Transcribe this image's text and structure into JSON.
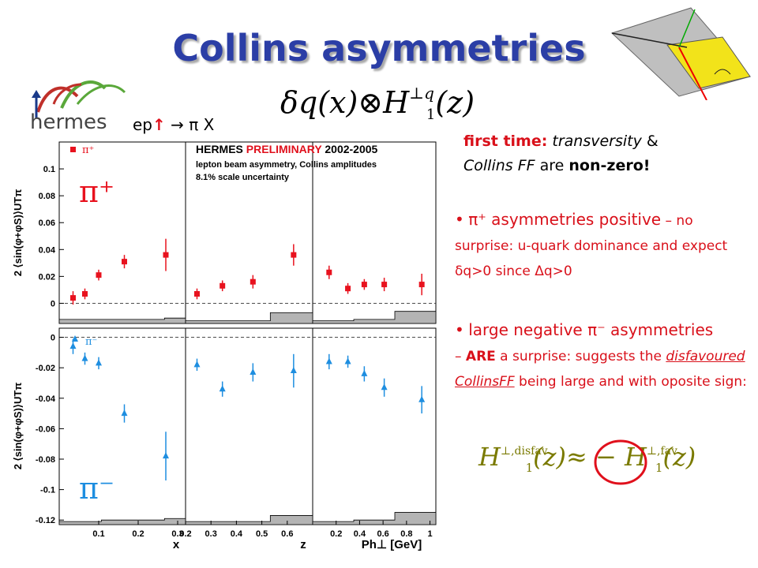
{
  "slide": {
    "title": "Collins asymmetries",
    "reaction": "ep",
    "reaction_tail": "π X",
    "formula_main": "δq(x)⊗H",
    "formula_sup": "⊥q",
    "formula_sub": "1",
    "formula_arg": "(z)",
    "logo_text": "hermes",
    "first_time_label": "first time:",
    "first_time_text_1": "transversity",
    "first_time_text_2": " & ",
    "first_time_text_3": "Collins FF",
    "first_time_text_4": " are ",
    "first_time_text_5": "non-zero!",
    "bullet1_pi": "π⁺",
    "bullet1_a": " asymmetries positive",
    "bullet1_b": " – no surprise: u-quark dominance and expect δq>0 since Δq>0",
    "bullet2_a": "large negative ",
    "bullet2_pi": "π⁻",
    "bullet2_b": " asymmetries",
    "bullet2_c": "– ",
    "bullet2_are": "ARE",
    "bullet2_d": " a surprise: suggests the ",
    "bullet2_e": "disfavoured CollinsFF",
    "bullet2_f": " being large and with oposite sign:",
    "bottom_formula_left": "H",
    "bottom_formula_left_sup": "⊥,disfav",
    "bottom_formula_one": "1",
    "bottom_formula_mid": "(z)≈ − H",
    "bottom_formula_right_sup": "⊥,fav",
    "bottom_formula_right": "(z)"
  },
  "chart_data": {
    "type": "scatter",
    "title": "HERMES PRELIMINARY 2002-2005",
    "title_part1": "HERMES ",
    "title_part2": "PRELIMINARY",
    "title_part3": " 2002-2005",
    "subtitle_1": "lepton beam asymmetry, Collins amplitudes",
    "subtitle_2": "8.1% scale uncertainty",
    "ylabel_top": "2 ⟨sin(φ+φS)⟩UTπ",
    "ylabel_bottom": "2 ⟨sin(φ+φS)⟩UTπ",
    "legend_top": "π⁺",
    "legend_bottom": "π⁻",
    "big_label_top": "π⁺",
    "big_label_bottom": "π⁻",
    "top_yticks": [
      "0.1",
      "0.08",
      "0.06",
      "0.04",
      "0.02",
      "0"
    ],
    "top_ylim": [
      -0.015,
      0.12
    ],
    "bottom_yticks": [
      "0",
      "-0.02",
      "-0.04",
      "-0.06",
      "-0.08",
      "-0.1",
      "-0.12"
    ],
    "bottom_ylim": [
      -0.123,
      0.006
    ],
    "panels": [
      {
        "xlabel": "x",
        "xlim": [
          0,
          0.32
        ],
        "xticks": [
          "0.1",
          "0.2",
          "0.3"
        ],
        "pip": [
          {
            "x": 0.035,
            "y": 0.004,
            "err": 0.005
          },
          {
            "x": 0.065,
            "y": 0.007,
            "err": 0.004
          },
          {
            "x": 0.1,
            "y": 0.021,
            "err": 0.004
          },
          {
            "x": 0.165,
            "y": 0.031,
            "err": 0.005
          },
          {
            "x": 0.27,
            "y": 0.036,
            "err": 0.012
          }
        ],
        "pim": [
          {
            "x": 0.035,
            "y": -0.006,
            "err": 0.005
          },
          {
            "x": 0.065,
            "y": -0.014,
            "err": 0.004
          },
          {
            "x": 0.1,
            "y": -0.017,
            "err": 0.004
          },
          {
            "x": 0.165,
            "y": -0.05,
            "err": 0.006
          },
          {
            "x": 0.27,
            "y": -0.078,
            "err": 0.016
          }
        ]
      },
      {
        "xlabel": "z",
        "xlim": [
          0.2,
          0.7
        ],
        "xticks": [
          "0.2",
          "0.3",
          "0.4",
          "0.5",
          "0.6"
        ],
        "pip": [
          {
            "x": 0.245,
            "y": 0.007,
            "err": 0.004
          },
          {
            "x": 0.345,
            "y": 0.013,
            "err": 0.004
          },
          {
            "x": 0.465,
            "y": 0.016,
            "err": 0.005
          },
          {
            "x": 0.625,
            "y": 0.036,
            "err": 0.008
          }
        ],
        "pim": [
          {
            "x": 0.245,
            "y": -0.018,
            "err": 0.004
          },
          {
            "x": 0.345,
            "y": -0.034,
            "err": 0.005
          },
          {
            "x": 0.465,
            "y": -0.023,
            "err": 0.006
          },
          {
            "x": 0.625,
            "y": -0.022,
            "err": 0.011
          }
        ]
      },
      {
        "xlabel": "Ph⊥ [GeV]",
        "xlim": [
          0,
          1.05
        ],
        "xticks": [
          "0.2",
          "0.4",
          "0.6",
          "0.8",
          "1"
        ],
        "pip": [
          {
            "x": 0.14,
            "y": 0.023,
            "err": 0.005
          },
          {
            "x": 0.3,
            "y": 0.011,
            "err": 0.004
          },
          {
            "x": 0.44,
            "y": 0.014,
            "err": 0.004
          },
          {
            "x": 0.61,
            "y": 0.014,
            "err": 0.005
          },
          {
            "x": 0.93,
            "y": 0.014,
            "err": 0.008
          }
        ],
        "pim": [
          {
            "x": 0.14,
            "y": -0.016,
            "err": 0.005
          },
          {
            "x": 0.3,
            "y": -0.016,
            "err": 0.004
          },
          {
            "x": 0.44,
            "y": -0.024,
            "err": 0.005
          },
          {
            "x": 0.61,
            "y": -0.033,
            "err": 0.006
          },
          {
            "x": 0.93,
            "y": -0.041,
            "err": 0.009
          }
        ]
      }
    ],
    "syst_band_top": [
      [
        0.003,
        0.003,
        0.003,
        0.003,
        0.003,
        0.004
      ],
      [
        0.002,
        0.002,
        0.002,
        0.002,
        0.008,
        0.008
      ],
      [
        0.002,
        0.002,
        0.003,
        0.003,
        0.009,
        0.009
      ]
    ],
    "syst_band_bottom": [
      [
        0.002,
        0.002,
        0.003,
        0.003,
        0.003,
        0.004
      ],
      [
        0.002,
        0.002,
        0.002,
        0.002,
        0.006,
        0.006
      ],
      [
        0.002,
        0.002,
        0.003,
        0.003,
        0.008,
        0.008
      ]
    ],
    "colors": {
      "pip": "#e8121e",
      "pim": "#1e8ee0",
      "band": "#b4b4b4",
      "title_red": "#e0101c"
    }
  }
}
